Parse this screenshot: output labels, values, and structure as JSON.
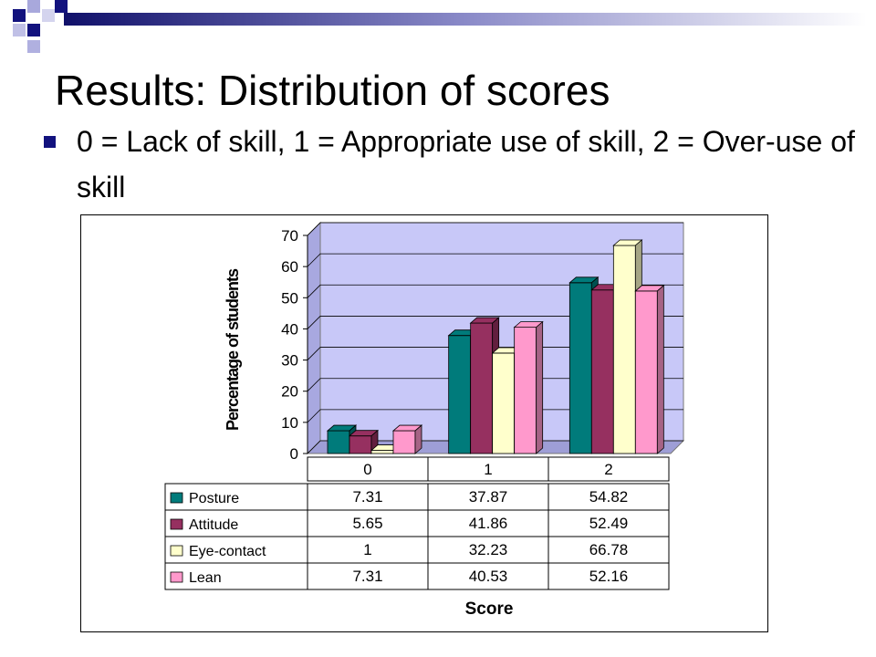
{
  "slide": {
    "title": "Results: Distribution of scores",
    "bullet_text": "0 = Lack of skill, 1 = Appropriate use of skill, 2 = Over-use of skill"
  },
  "colors": {
    "title_bar": "#12127e",
    "plot_background": "#c8c8f8",
    "Posture": "#007b7b",
    "Attitude": "#963060",
    "Eye-contact": "#ffffcc",
    "Lean": "#ff99cc"
  },
  "chart_data": {
    "type": "bar",
    "style": "3d-clustered",
    "title": "",
    "xlabel": "Score",
    "ylabel": "Percentage of students",
    "categories": [
      "0",
      "1",
      "2"
    ],
    "ylim": [
      0,
      70
    ],
    "yticks": [
      "0",
      "10",
      "20",
      "30",
      "40",
      "50",
      "60",
      "70"
    ],
    "grid": true,
    "data_table": true,
    "series": [
      {
        "name": "Posture",
        "values": [
          7.31,
          37.87,
          54.82
        ],
        "labels": [
          "7.31",
          "37.87",
          "54.82"
        ]
      },
      {
        "name": "Attitude",
        "values": [
          5.65,
          41.86,
          52.49
        ],
        "labels": [
          "5.65",
          "41.86",
          "52.49"
        ]
      },
      {
        "name": "Eye-contact",
        "values": [
          1,
          32.23,
          66.78
        ],
        "labels": [
          "1",
          "32.23",
          "66.78"
        ]
      },
      {
        "name": "Lean",
        "values": [
          7.31,
          40.53,
          52.16
        ],
        "labels": [
          "7.31",
          "40.53",
          "52.16"
        ]
      }
    ]
  }
}
